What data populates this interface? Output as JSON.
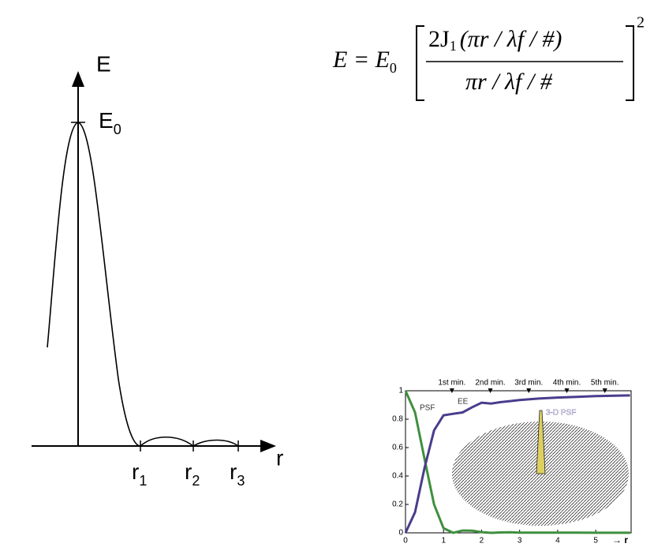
{
  "diagram": {
    "y_axis_label": "E",
    "peak_label": {
      "text": "E",
      "sub": "0"
    },
    "x_axis_label": "r",
    "zero_labels": [
      {
        "text": "r",
        "sub": "1"
      },
      {
        "text": "r",
        "sub": "2"
      },
      {
        "text": "r",
        "sub": "3"
      }
    ]
  },
  "equation": {
    "lhs": "E = E",
    "lhs_sub": "0",
    "num_a": "2J",
    "num_sub": "1",
    "num_b": "(πr / λf / #)",
    "den": "πr / λf / #",
    "power": "2"
  },
  "chart_data": {
    "type": "line",
    "x_label": "→ r",
    "x": [
      0,
      0.25,
      0.5,
      0.75,
      1,
      1.25,
      1.5,
      1.75,
      2,
      2.25,
      2.5,
      2.75,
      3,
      3.5,
      4,
      4.5,
      5,
      5.5,
      5.9
    ],
    "series": [
      {
        "name": "PSF",
        "color": "#3f8f3f",
        "values": [
          1,
          0.848,
          0.521,
          0.2,
          0.033,
          0.0004,
          0.016,
          0.015,
          0.005,
          0,
          0.003,
          0.004,
          0.001,
          0.001,
          0.001,
          0.001,
          0.0005,
          0.0005,
          0.0003
        ]
      },
      {
        "name": "EE",
        "color": "#4a3c8c",
        "values": [
          0,
          0.145,
          0.456,
          0.721,
          0.827,
          0.838,
          0.847,
          0.884,
          0.916,
          0.91,
          0.92,
          0.927,
          0.935,
          0.945,
          0.952,
          0.957,
          0.962,
          0.965,
          0.967
        ]
      }
    ],
    "annotations": [
      {
        "text": "1st min.",
        "x": 1.22
      },
      {
        "text": "2nd min.",
        "x": 2.23
      },
      {
        "text": "3rd min.",
        "x": 3.24
      },
      {
        "text": "4th min.",
        "x": 4.24
      },
      {
        "text": "5th min.",
        "x": 5.24
      }
    ],
    "inset_label": "3-D PSF",
    "xlim": [
      0,
      5.93
    ],
    "ylim": [
      0,
      1
    ],
    "xticks": [
      0,
      1,
      2,
      3,
      4,
      5
    ],
    "yticks": [
      0,
      0.2,
      0.4,
      0.6,
      0.8,
      1
    ]
  }
}
